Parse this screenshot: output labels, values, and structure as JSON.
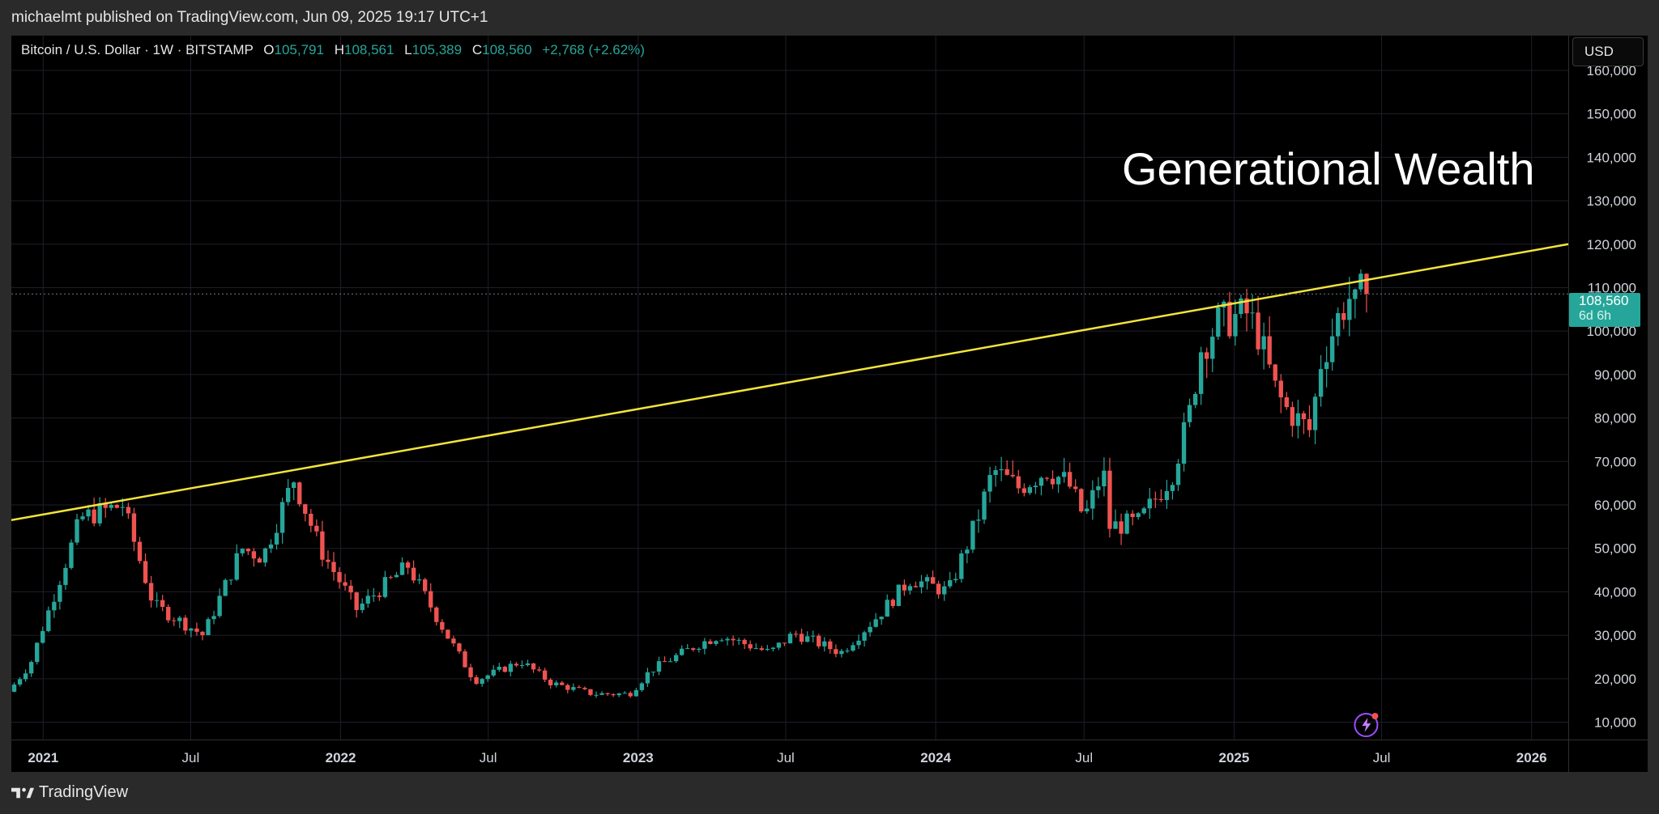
{
  "header": {
    "published": "michaelmt published on TradingView.com, Jun 09, 2025 19:17 UTC+1"
  },
  "legend": {
    "symbol": "Bitcoin / U.S. Dollar · 1W · BITSTAMP",
    "o_label": "O",
    "o": "105,791",
    "h_label": "H",
    "h": "108,561",
    "l_label": "L",
    "l": "105,389",
    "c_label": "C",
    "c": "108,560",
    "change": "+2,768 (+2.62%)"
  },
  "currency_button": "USD",
  "price_tag": {
    "price": "108,560",
    "countdown": "6d 6h"
  },
  "watermark": "Generational Wealth",
  "footer": {
    "brand": "TradingView"
  },
  "colors": {
    "up": "#26a69a",
    "down": "#ef5350",
    "trendline": "#f3e43a",
    "background": "#000000",
    "grid": "#1e1e2a"
  },
  "chart_data": {
    "type": "candlestick",
    "symbol": "BTCUSD",
    "interval": "1W",
    "xlabels": [
      "2021",
      "Jul",
      "2022",
      "Jul",
      "2023",
      "Jul",
      "2024",
      "Jul",
      "2025",
      "Jul",
      "2026"
    ],
    "xlabel_bold": [
      true,
      false,
      true,
      false,
      true,
      false,
      true,
      false,
      true,
      false,
      true
    ],
    "ylim": [
      6000,
      168000
    ],
    "ytick_labels": [
      "10,000",
      "20,000",
      "30,000",
      "40,000",
      "50,000",
      "60,000",
      "70,000",
      "80,000",
      "90,000",
      "100,000",
      "110,000",
      "120,000",
      "130,000",
      "140,000",
      "150,000",
      "160,000"
    ],
    "ytick_values": [
      10000,
      20000,
      30000,
      40000,
      50000,
      60000,
      70000,
      80000,
      90000,
      100000,
      110000,
      120000,
      130000,
      140000,
      150000,
      160000
    ],
    "x_range": [
      "2020-11-23",
      "2026-02-15"
    ],
    "last_price": 108560,
    "trendline": {
      "start": [
        "2020-11-23",
        56500
      ],
      "end": [
        "2026-02-15",
        120000
      ]
    },
    "anchors": [
      [
        "2020-11-23",
        17000
      ],
      [
        "2020-12-20",
        23500
      ],
      [
        "2021-01-10",
        35000
      ],
      [
        "2021-02-20",
        57000
      ],
      [
        "2021-04-12",
        60000
      ],
      [
        "2021-05-20",
        37000
      ],
      [
        "2021-07-20",
        30000
      ],
      [
        "2021-09-05",
        50000
      ],
      [
        "2021-10-01",
        48000
      ],
      [
        "2021-11-08",
        66000
      ],
      [
        "2021-12-10",
        50000
      ],
      [
        "2022-01-24",
        36000
      ],
      [
        "2022-03-28",
        46000
      ],
      [
        "2022-05-15",
        30000
      ],
      [
        "2022-06-18",
        19500
      ],
      [
        "2022-08-14",
        24000
      ],
      [
        "2022-09-20",
        19000
      ],
      [
        "2022-11-10",
        16500
      ],
      [
        "2022-12-25",
        16500
      ],
      [
        "2023-01-20",
        22000
      ],
      [
        "2023-03-20",
        28000
      ],
      [
        "2023-04-15",
        30000
      ],
      [
        "2023-06-15",
        26000
      ],
      [
        "2023-07-15",
        30500
      ],
      [
        "2023-09-10",
        26000
      ],
      [
        "2023-10-23",
        34000
      ],
      [
        "2023-12-05",
        43000
      ],
      [
        "2024-01-20",
        40000
      ],
      [
        "2024-02-25",
        57000
      ],
      [
        "2024-03-15",
        68000
      ],
      [
        "2024-04-15",
        64000
      ],
      [
        "2024-05-20",
        68000
      ],
      [
        "2024-06-15",
        65000
      ],
      [
        "2024-07-05",
        57000
      ],
      [
        "2024-07-28",
        68000
      ],
      [
        "2024-08-05",
        55000
      ],
      [
        "2024-09-10",
        56000
      ],
      [
        "2024-10-20",
        67000
      ],
      [
        "2024-11-10",
        80000
      ],
      [
        "2024-11-25",
        96000
      ],
      [
        "2024-12-16",
        102000
      ],
      [
        "2025-01-20",
        104000
      ],
      [
        "2025-02-02",
        100000
      ],
      [
        "2025-02-25",
        86000
      ],
      [
        "2025-03-10",
        82000
      ],
      [
        "2025-04-08",
        77000
      ],
      [
        "2025-04-21",
        93000
      ],
      [
        "2025-05-12",
        103000
      ],
      [
        "2025-05-25",
        108000
      ],
      [
        "2025-06-02",
        105500
      ],
      [
        "2025-06-09",
        108560
      ]
    ]
  }
}
